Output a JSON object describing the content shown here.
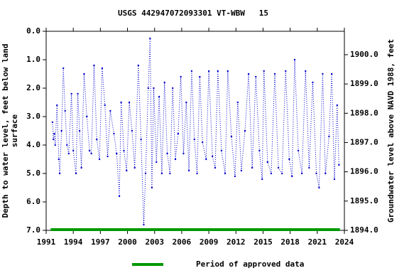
{
  "chart_data": {
    "type": "line",
    "title": "USGS 442947072093301 VT-WBW   15",
    "y_label": "Depth to water level, feet below land surface",
    "y2_label": "Groundwater level above NAVD 1988, feet",
    "xlim": [
      1991,
      2024
    ],
    "xticks": [
      1991,
      1994,
      1997,
      2000,
      2003,
      2006,
      2009,
      2012,
      2015,
      2018,
      2021,
      2024
    ],
    "ylim": [
      0,
      7
    ],
    "y_inverted": true,
    "yticks": [
      {
        "value": 0,
        "label": "0.0"
      },
      {
        "value": 1,
        "label": "1.0"
      },
      {
        "value": 2,
        "label": "2.0"
      },
      {
        "value": 3,
        "label": "3.0"
      },
      {
        "value": 4,
        "label": "4.0"
      },
      {
        "value": 5,
        "label": "5.0"
      },
      {
        "value": 6,
        "label": "6.0"
      },
      {
        "value": 7,
        "label": "7.0"
      }
    ],
    "y2lim": [
      1894.0,
      1900.8
    ],
    "y2ticks": [
      {
        "value": 1894,
        "label": "1894.0"
      },
      {
        "value": 1895,
        "label": "1895.0"
      },
      {
        "value": 1896,
        "label": "1896.0"
      },
      {
        "value": 1897,
        "label": "1897.0"
      },
      {
        "value": 1898,
        "label": "1898.0"
      },
      {
        "value": 1899,
        "label": "1899.0"
      },
      {
        "value": 1900,
        "label": "1900.0"
      }
    ],
    "series": [
      {
        "color": "#0000cc",
        "x": [
          1991.7,
          1991.8,
          1991.9,
          1992.0,
          1992.2,
          1992.4,
          1992.5,
          1992.7,
          1992.9,
          1993.1,
          1993.3,
          1993.5,
          1993.8,
          1994.0,
          1994.3,
          1994.5,
          1994.7,
          1994.9,
          1995.2,
          1995.5,
          1995.8,
          1996.0,
          1996.3,
          1996.6,
          1996.9,
          1997.2,
          1997.5,
          1997.8,
          1998.1,
          1998.5,
          1998.8,
          1999.1,
          1999.3,
          1999.6,
          1999.9,
          2000.2,
          2000.5,
          2000.8,
          2001.2,
          2001.5,
          2001.8,
          2002.0,
          2002.3,
          2002.5,
          2002.7,
          2002.9,
          2003.2,
          2003.5,
          2003.8,
          2004.1,
          2004.4,
          2004.7,
          2005.0,
          2005.3,
          2005.6,
          2005.9,
          2006.2,
          2006.5,
          2006.8,
          2007.1,
          2007.4,
          2007.7,
          2008.0,
          2008.3,
          2008.7,
          2009.0,
          2009.4,
          2009.7,
          2010.0,
          2010.4,
          2010.8,
          2011.1,
          2011.5,
          2011.9,
          2012.2,
          2012.6,
          2013.0,
          2013.4,
          2013.8,
          2014.2,
          2014.6,
          2014.9,
          2015.1,
          2015.5,
          2015.9,
          2016.3,
          2016.7,
          2017.1,
          2017.5,
          2017.9,
          2018.2,
          2018.5,
          2018.9,
          2019.3,
          2019.7,
          2020.1,
          2020.5,
          2020.9,
          2021.2,
          2021.6,
          2021.9,
          2022.3,
          2022.6,
          2022.9,
          2023.2,
          2023.4
        ],
        "values": [
          3.2,
          3.8,
          3.6,
          4.0,
          2.6,
          4.5,
          5.0,
          3.5,
          1.3,
          2.8,
          4.0,
          4.3,
          2.2,
          4.2,
          5.0,
          2.2,
          3.5,
          4.8,
          1.5,
          3.0,
          4.2,
          4.3,
          1.2,
          3.8,
          4.5,
          1.3,
          2.6,
          4.4,
          2.8,
          3.6,
          4.3,
          5.8,
          2.5,
          4.2,
          4.9,
          2.5,
          3.5,
          4.8,
          1.2,
          3.8,
          6.8,
          5.0,
          2.0,
          0.25,
          5.5,
          2.0,
          4.6,
          2.3,
          5.0,
          1.8,
          4.3,
          5.0,
          2.0,
          4.5,
          3.6,
          1.6,
          4.3,
          2.5,
          4.9,
          1.4,
          3.8,
          5.0,
          1.6,
          3.9,
          4.5,
          1.4,
          4.4,
          4.8,
          1.4,
          4.2,
          5.0,
          1.4,
          3.7,
          5.1,
          2.5,
          4.9,
          3.5,
          1.5,
          4.8,
          1.6,
          4.2,
          5.2,
          1.4,
          4.6,
          5.0,
          1.5,
          4.8,
          5.0,
          1.4,
          4.5,
          5.1,
          1.0,
          4.2,
          5.0,
          1.4,
          4.8,
          1.8,
          5.0,
          5.5,
          1.5,
          5.0,
          3.7,
          1.5,
          5.2,
          2.6,
          4.7
        ]
      }
    ],
    "approved": {
      "name": "Period of approved data",
      "color": "#009900",
      "x": [
        1991.5,
        2023.5
      ]
    }
  }
}
